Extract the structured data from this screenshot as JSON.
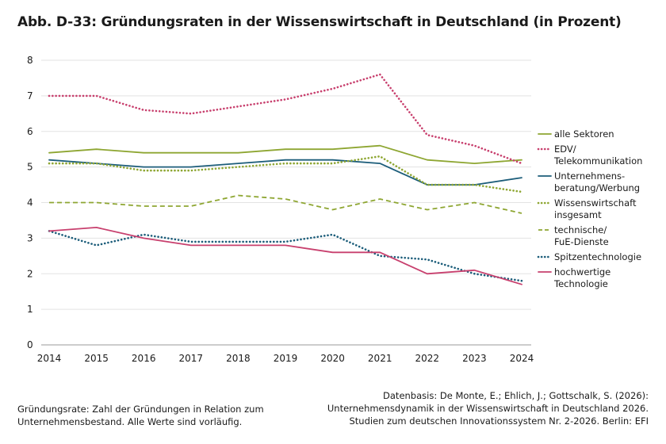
{
  "title": "Abb. D-33: Gründungsraten in der Wissenswirtschaft in Deutschland (in Prozent)",
  "chart_data": {
    "type": "line",
    "x": [
      "2014",
      "2015",
      "2016",
      "2017",
      "2018",
      "2019",
      "2020",
      "2021",
      "2022",
      "2023",
      "2024"
    ],
    "ylim": [
      0,
      8
    ],
    "yticks": [
      "0",
      "1",
      "2",
      "3",
      "4",
      "5",
      "6",
      "7",
      "8"
    ],
    "grid": "horizontal",
    "legend_position": "right",
    "series": [
      {
        "name": "alle Sektoren",
        "color": "#8ea632",
        "dash": "solid",
        "values": [
          5.4,
          5.5,
          5.4,
          5.4,
          5.4,
          5.5,
          5.5,
          5.6,
          5.2,
          5.1,
          5.2
        ]
      },
      {
        "name": "EDV/ Telekommunikation",
        "label_lines": [
          "EDV/",
          "Telekommunikation"
        ],
        "color": "#c8406e",
        "dash": "dotted",
        "values": [
          7.0,
          7.0,
          6.6,
          6.5,
          6.7,
          6.9,
          7.2,
          7.6,
          5.9,
          5.6,
          5.1
        ]
      },
      {
        "name": "Unternehmensberatung/Werbung",
        "label_lines": [
          "Unternehmens-",
          "beratung/Werbung"
        ],
        "color": "#1c5d7a",
        "dash": "solid",
        "values": [
          5.2,
          5.1,
          5.0,
          5.0,
          5.1,
          5.2,
          5.2,
          5.1,
          4.5,
          4.5,
          4.7
        ]
      },
      {
        "name": "Wissenswirtschaft insgesamt",
        "label_lines": [
          "Wissenswirtschaft",
          "insgesamt"
        ],
        "color": "#8ea632",
        "dash": "dotted",
        "values": [
          5.1,
          5.1,
          4.9,
          4.9,
          5.0,
          5.1,
          5.1,
          5.3,
          4.5,
          4.5,
          4.3
        ]
      },
      {
        "name": "technische/ FuE-Dienste",
        "label_lines": [
          "technische/",
          "FuE-Dienste"
        ],
        "color": "#8ea632",
        "dash": "dashed",
        "values": [
          4.0,
          4.0,
          3.9,
          3.9,
          4.2,
          4.1,
          3.8,
          4.1,
          3.8,
          4.0,
          3.7
        ]
      },
      {
        "name": "Spitzentechnologie",
        "label_lines": [
          "Spitzentechnologie"
        ],
        "color": "#1c5d7a",
        "dash": "dotted",
        "values": [
          3.2,
          2.8,
          3.1,
          2.9,
          2.9,
          2.9,
          3.1,
          2.5,
          2.4,
          2.0,
          1.8
        ]
      },
      {
        "name": "hochwertige Technologie",
        "label_lines": [
          "hochwertige",
          "Technologie"
        ],
        "color": "#c8406e",
        "dash": "solid",
        "values": [
          3.2,
          3.3,
          3.0,
          2.8,
          2.8,
          2.8,
          2.6,
          2.6,
          2.0,
          2.1,
          1.7
        ]
      }
    ]
  },
  "notes": {
    "left": [
      "Gründungsrate: Zahl der Gründungen in Relation zum",
      "Unternehmensbestand. Alle Werte sind vorläufig."
    ],
    "right": [
      "Datenbasis: De Monte, E.; Ehlich, J.; Gottschalk, S. (2026):",
      "Unternehmensdynamik in der Wissenswirtschaft in Deutschland 2026.",
      "Studien zum deutschen Innovationssystem Nr. 2-2026. Berlin: EFI"
    ]
  }
}
